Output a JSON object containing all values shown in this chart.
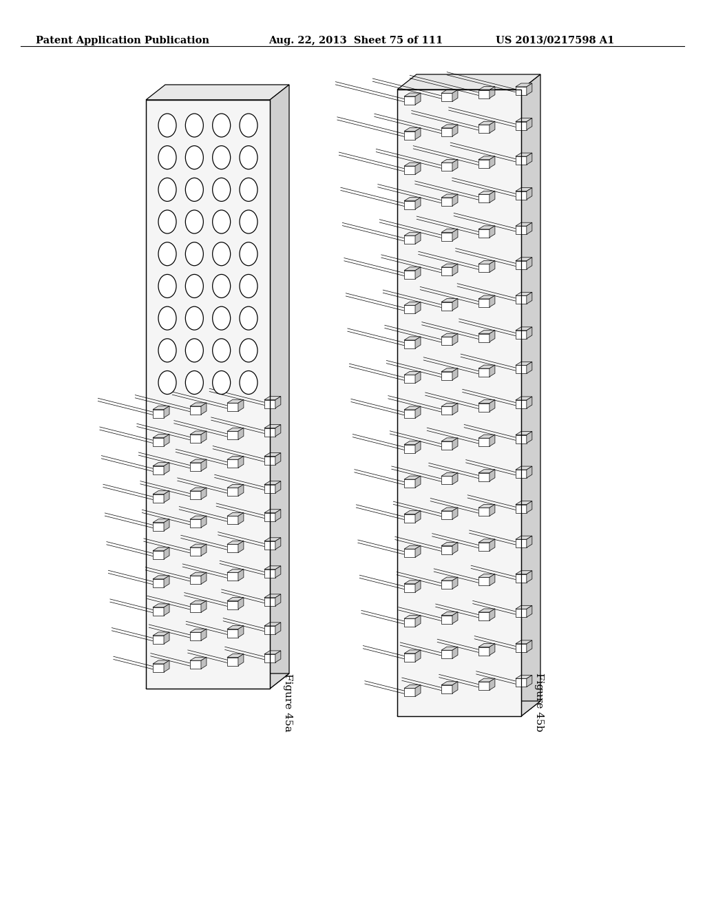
{
  "header_left": "Patent Application Publication",
  "header_mid": "Aug. 22, 2013  Sheet 75 of 111",
  "header_right": "US 2013/0217598 A1",
  "fig_label_a": "Figure 45a",
  "fig_label_b": "Figure 45b",
  "bg_color": "#ffffff",
  "line_color": "#000000",
  "fig_width": 10.24,
  "fig_height": 13.2,
  "header_fontsize": 10.5,
  "label_fontsize": 11
}
